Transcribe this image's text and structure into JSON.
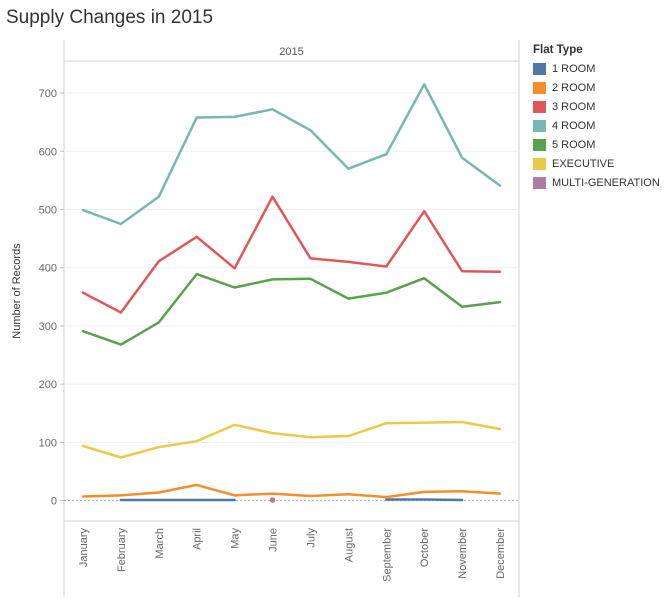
{
  "chart_data": {
    "type": "line",
    "title": "Supply Changes in 2015",
    "panel_header": "2015",
    "ylabel": "Number of Records",
    "xlabel": "",
    "ylim": [
      -35,
      755
    ],
    "yticks": [
      0,
      100,
      200,
      300,
      400,
      500,
      600,
      700
    ],
    "ytick_labels": [
      "0",
      "100",
      "200",
      "300",
      "400",
      "500",
      "600",
      "700"
    ],
    "grid": true,
    "legend_position": "right",
    "legend_title": "Flat Type",
    "categories": [
      "January",
      "February",
      "March",
      "April",
      "May",
      "June",
      "July",
      "August",
      "September",
      "October",
      "November",
      "December"
    ],
    "series": [
      {
        "name": "1 ROOM",
        "color": "#4e79a7",
        "values": [
          null,
          1,
          1,
          1,
          1,
          null,
          null,
          null,
          2,
          2,
          1,
          null
        ]
      },
      {
        "name": "2 ROOM",
        "color": "#f28e2b",
        "values": [
          7,
          9,
          14,
          27,
          9,
          12,
          8,
          11,
          6,
          15,
          16,
          12
        ]
      },
      {
        "name": "3 ROOM",
        "color": "#e15759",
        "values": [
          357,
          323,
          411,
          453,
          399,
          522,
          416,
          410,
          402,
          497,
          394,
          393
        ]
      },
      {
        "name": "4 ROOM",
        "color": "#76b7b2",
        "values": [
          499,
          475,
          522,
          658,
          659,
          672,
          636,
          570,
          595,
          715,
          589,
          541
        ]
      },
      {
        "name": "5 ROOM",
        "color": "#59a14f",
        "values": [
          291,
          268,
          306,
          389,
          366,
          380,
          381,
          347,
          357,
          382,
          333,
          341
        ]
      },
      {
        "name": "EXECUTIVE",
        "color": "#edc948",
        "values": [
          94,
          74,
          92,
          102,
          130,
          116,
          109,
          111,
          133,
          134,
          135,
          123
        ]
      },
      {
        "name": "MULTI-GENERATION",
        "color": "#b07aa1",
        "values": [
          null,
          null,
          null,
          null,
          null,
          1,
          null,
          null,
          null,
          null,
          null,
          null
        ]
      }
    ]
  }
}
